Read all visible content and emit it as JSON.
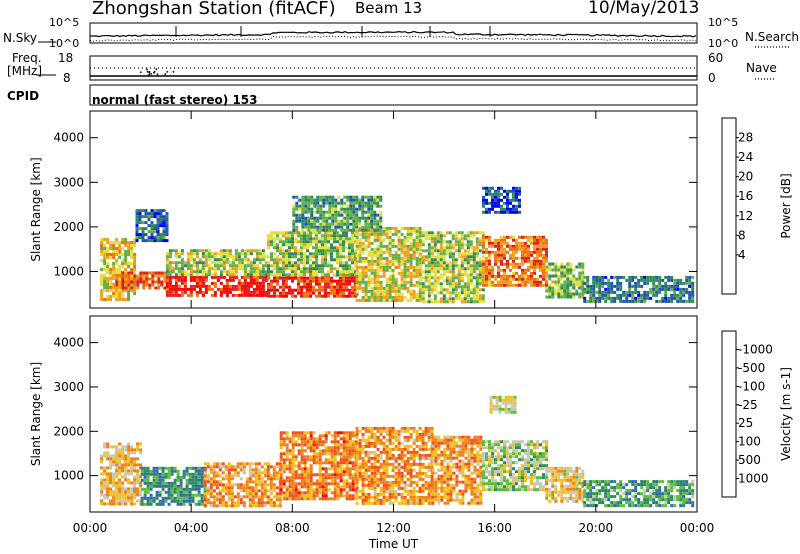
{
  "header": {
    "station": "Zhongshan Station (fitACF)",
    "beam": "Beam 13",
    "date": "10/May/2013"
  },
  "top_panels": {
    "nsky_label": "N.Sky",
    "nsky_ticks": [
      "10^5",
      "10^0"
    ],
    "nsearch_label": "N.Search",
    "nsearch_ticks": [
      "10^5",
      "10^0"
    ],
    "freq_label_1": "Freq.",
    "freq_label_2": "[MHz]",
    "freq_ticks": [
      "18",
      "8"
    ],
    "nave_label": "Nave",
    "nave_ticks": [
      "60",
      "0"
    ],
    "cpid_label": "CPID",
    "cpid_text": "normal (fast stereo) 153"
  },
  "chart_data": [
    {
      "type": "heatmap",
      "title": "",
      "xlabel": "Time UT",
      "ylabel": "Slant Range [km]",
      "x_ticks": [
        "00:00",
        "04:00",
        "08:00",
        "12:00",
        "16:00",
        "20:00",
        "00:00"
      ],
      "xlim_hours": [
        0,
        24
      ],
      "y_ticks": [
        1000,
        2000,
        3000,
        4000
      ],
      "ylim": [
        180,
        4600
      ],
      "colorbar": {
        "label": "Power [dB]",
        "ticks": [
          "4",
          "8",
          "12",
          "16",
          "20",
          "24",
          "28"
        ],
        "colors": [
          "#0000ff",
          "#1f54b4",
          "#2f8a5a",
          "#64b046",
          "#e0e040",
          "#f0a020",
          "#f07010",
          "#e02020",
          "#ff0000"
        ]
      },
      "blocks": [
        {
          "t0": 0.4,
          "t1": 1.8,
          "r0": 350,
          "r1": 1750,
          "level": 0.55
        },
        {
          "t0": 1.0,
          "t1": 3.0,
          "r0": 600,
          "r1": 1000,
          "level": 0.78
        },
        {
          "t0": 3.0,
          "t1": 7.0,
          "r0": 450,
          "r1": 900,
          "level": 0.92
        },
        {
          "t0": 3.0,
          "t1": 7.0,
          "r0": 900,
          "r1": 1500,
          "level": 0.45
        },
        {
          "t0": 7.0,
          "t1": 10.5,
          "r0": 450,
          "r1": 950,
          "level": 0.85
        },
        {
          "t0": 7.0,
          "t1": 10.5,
          "r0": 950,
          "r1": 1900,
          "level": 0.42
        },
        {
          "t0": 10.5,
          "t1": 13.0,
          "r0": 350,
          "r1": 2000,
          "level": 0.52
        },
        {
          "t0": 13.0,
          "t1": 15.5,
          "r0": 350,
          "r1": 1900,
          "level": 0.45
        },
        {
          "t0": 15.5,
          "t1": 18.0,
          "r0": 700,
          "r1": 1800,
          "level": 0.72
        },
        {
          "t0": 15.5,
          "t1": 17.0,
          "r0": 2300,
          "r1": 2900,
          "level": 0.12
        },
        {
          "t0": 18.0,
          "t1": 19.5,
          "r0": 400,
          "r1": 1200,
          "level": 0.4
        },
        {
          "t0": 19.5,
          "t1": 23.8,
          "r0": 350,
          "r1": 900,
          "level": 0.22
        },
        {
          "t0": 1.8,
          "t1": 3.0,
          "r0": 1700,
          "r1": 2400,
          "level": 0.18
        },
        {
          "t0": 8.0,
          "t1": 11.5,
          "r0": 1900,
          "r1": 2700,
          "level": 0.3
        }
      ]
    },
    {
      "type": "heatmap",
      "title": "",
      "xlabel": "Time UT",
      "ylabel": "Slant Range [km]",
      "x_ticks": [
        "00:00",
        "04:00",
        "08:00",
        "12:00",
        "16:00",
        "20:00",
        "00:00"
      ],
      "xlim_hours": [
        0,
        24
      ],
      "y_ticks": [
        1000,
        2000,
        3000,
        4000
      ],
      "ylim": [
        180,
        4600
      ],
      "colorbar": {
        "label": "Velocity [m s-1]",
        "ticks": [
          "1000",
          "500",
          "100",
          "25",
          "-25",
          "-100",
          "-500",
          "-1000"
        ],
        "colors": [
          "#1f3fb0",
          "#2f6ab0",
          "#2e8a60",
          "#5cbd3a",
          "#c8c8b8",
          "#f0c020",
          "#f08018",
          "#f05020",
          "#ff0000"
        ]
      },
      "blocks": [
        {
          "t0": 0.4,
          "t1": 2.0,
          "r0": 350,
          "r1": 1750,
          "level": 0.62
        },
        {
          "t0": 2.0,
          "t1": 4.5,
          "r0": 350,
          "r1": 1200,
          "level": 0.25
        },
        {
          "t0": 4.5,
          "t1": 7.5,
          "r0": 350,
          "r1": 1300,
          "level": 0.7
        },
        {
          "t0": 7.5,
          "t1": 10.5,
          "r0": 450,
          "r1": 2000,
          "level": 0.78
        },
        {
          "t0": 10.5,
          "t1": 13.5,
          "r0": 350,
          "r1": 2100,
          "level": 0.72
        },
        {
          "t0": 13.5,
          "t1": 15.5,
          "r0": 350,
          "r1": 1900,
          "level": 0.7
        },
        {
          "t0": 15.5,
          "t1": 18.0,
          "r0": 700,
          "r1": 1800,
          "level": 0.45
        },
        {
          "t0": 15.8,
          "t1": 16.8,
          "r0": 2400,
          "r1": 2800,
          "level": 0.5
        },
        {
          "t0": 18.0,
          "t1": 19.5,
          "r0": 400,
          "r1": 1200,
          "level": 0.6
        },
        {
          "t0": 19.5,
          "t1": 23.8,
          "r0": 350,
          "r1": 900,
          "level": 0.3
        }
      ]
    }
  ]
}
